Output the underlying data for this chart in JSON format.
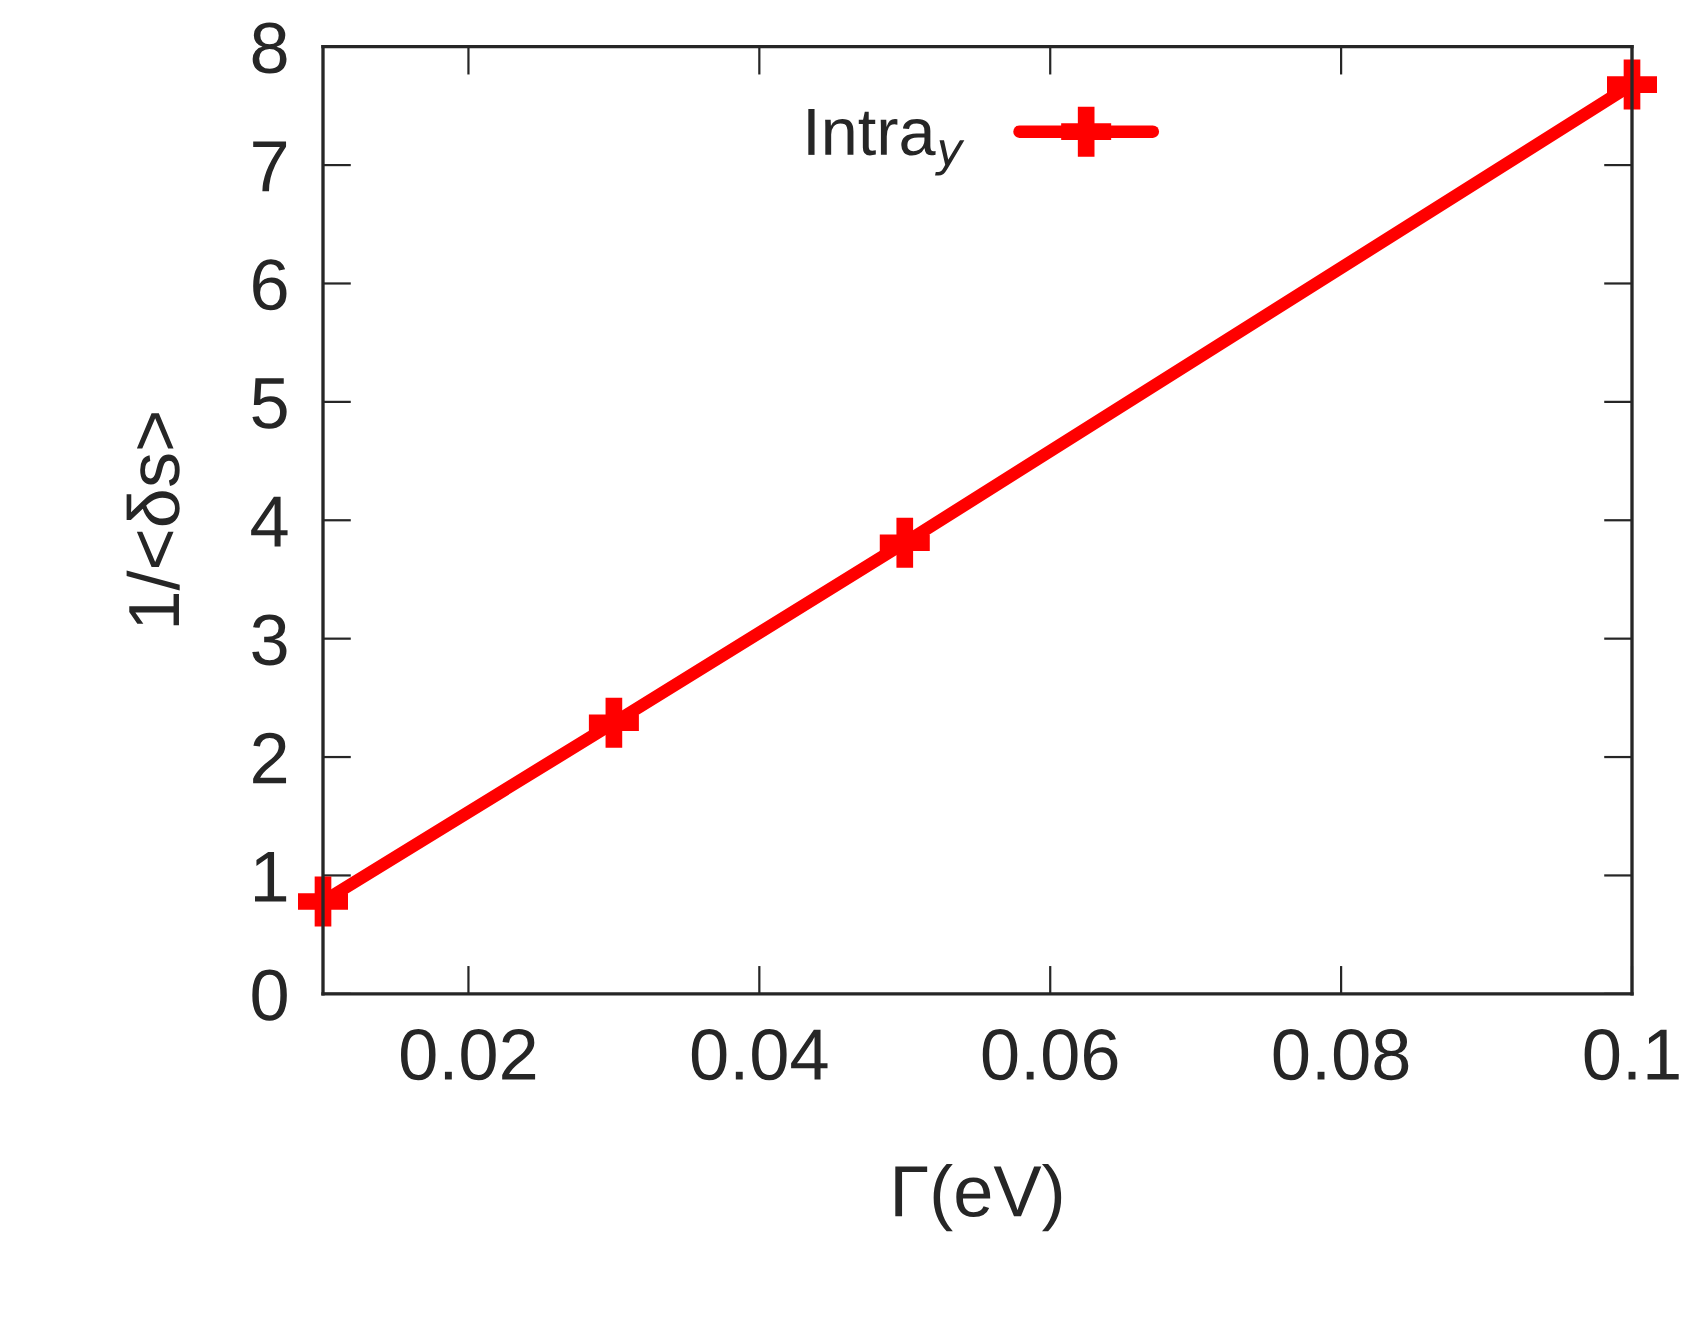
{
  "chart_data": {
    "type": "line",
    "xlabel": "Γ(eV)",
    "ylabel": "1/<δs>",
    "x": [
      0.01,
      0.03,
      0.05,
      0.1
    ],
    "series": [
      {
        "name": "Intra$_{y}$",
        "color": "#ff0000",
        "values": [
          0.78,
          2.29,
          3.81,
          7.68
        ]
      }
    ],
    "xlim": [
      0.01,
      0.1
    ],
    "xticks": [
      0.02,
      0.04,
      0.06,
      0.08,
      0.1
    ],
    "ylim": [
      0,
      8
    ],
    "yticks": [
      0,
      1,
      2,
      3,
      4,
      5,
      6,
      7,
      8
    ],
    "marker": "cross",
    "line_style": "solid",
    "grid": false,
    "legend": "top"
  }
}
